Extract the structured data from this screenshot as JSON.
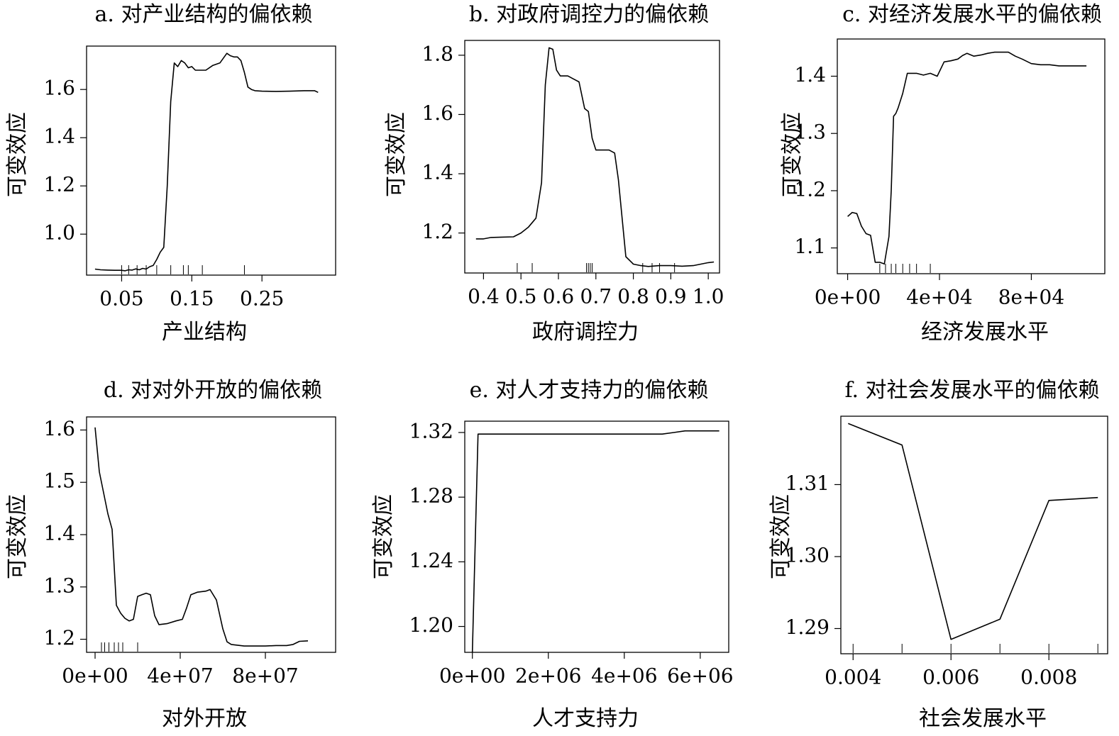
{
  "chart_data": [
    {
      "type": "line",
      "title": "a. 对产业结构的偏依赖",
      "xlabel": "产业结构",
      "ylabel": "可变效应",
      "xlim": [
        0.0,
        0.355
      ],
      "ylim": [
        0.83,
        1.78
      ],
      "xticks": [
        0.05,
        0.15,
        0.25
      ],
      "xtick_labels": [
        "0.05",
        "0.15",
        "0.25"
      ],
      "yticks": [
        1.0,
        1.2,
        1.4,
        1.6
      ],
      "ytick_labels": [
        "1.0",
        "1.2",
        "1.4",
        "1.6"
      ],
      "rug": [
        0.05,
        0.06,
        0.072,
        0.085,
        0.1,
        0.12,
        0.138,
        0.145,
        0.165,
        0.225
      ],
      "x": [
        0.012,
        0.02,
        0.03,
        0.04,
        0.05,
        0.055,
        0.06,
        0.065,
        0.07,
        0.075,
        0.08,
        0.085,
        0.09,
        0.095,
        0.1,
        0.105,
        0.11,
        0.115,
        0.12,
        0.125,
        0.13,
        0.135,
        0.14,
        0.145,
        0.15,
        0.155,
        0.16,
        0.17,
        0.18,
        0.19,
        0.2,
        0.205,
        0.21,
        0.215,
        0.22,
        0.225,
        0.23,
        0.235,
        0.24,
        0.25,
        0.27,
        0.29,
        0.31,
        0.325,
        0.33
      ],
      "y": [
        0.855,
        0.852,
        0.851,
        0.85,
        0.85,
        0.848,
        0.852,
        0.851,
        0.856,
        0.852,
        0.858,
        0.855,
        0.865,
        0.87,
        0.895,
        0.925,
        0.945,
        1.2,
        1.55,
        1.71,
        1.695,
        1.72,
        1.71,
        1.69,
        1.695,
        1.68,
        1.68,
        1.68,
        1.7,
        1.71,
        1.75,
        1.74,
        1.735,
        1.735,
        1.72,
        1.67,
        1.61,
        1.6,
        1.595,
        1.593,
        1.592,
        1.593,
        1.595,
        1.595,
        1.588
      ]
    },
    {
      "type": "line",
      "title": "b. 对政府调控力的偏依赖",
      "xlabel": "政府调控力",
      "ylabel": "可变效应",
      "xlim": [
        0.35,
        1.03
      ],
      "ylim": [
        1.065,
        1.85
      ],
      "xticks": [
        0.4,
        0.5,
        0.6,
        0.7,
        0.8,
        0.9,
        1.0
      ],
      "xtick_labels": [
        "0.4",
        "0.5",
        "0.6",
        "0.7",
        "0.8",
        "0.9",
        "1.0"
      ],
      "yticks": [
        1.2,
        1.4,
        1.6,
        1.8
      ],
      "ytick_labels": [
        "1.2",
        "1.4",
        "1.6",
        "1.8"
      ],
      "rug": [
        0.49,
        0.53,
        0.675,
        0.68,
        0.685,
        0.69,
        0.825,
        0.85,
        0.87,
        0.91
      ],
      "x": [
        0.38,
        0.4,
        0.42,
        0.45,
        0.48,
        0.5,
        0.52,
        0.54,
        0.555,
        0.565,
        0.575,
        0.585,
        0.595,
        0.605,
        0.615,
        0.625,
        0.64,
        0.655,
        0.67,
        0.68,
        0.69,
        0.7,
        0.72,
        0.735,
        0.75,
        0.76,
        0.78,
        0.8,
        0.82,
        0.84,
        0.87,
        0.9,
        0.93,
        0.96,
        0.98,
        1.0,
        1.015
      ],
      "y": [
        1.18,
        1.18,
        1.185,
        1.186,
        1.187,
        1.2,
        1.22,
        1.25,
        1.37,
        1.7,
        1.825,
        1.82,
        1.75,
        1.73,
        1.73,
        1.73,
        1.72,
        1.71,
        1.62,
        1.61,
        1.52,
        1.48,
        1.48,
        1.48,
        1.47,
        1.38,
        1.12,
        1.095,
        1.09,
        1.087,
        1.09,
        1.09,
        1.088,
        1.09,
        1.095,
        1.1,
        1.102
      ]
    },
    {
      "type": "line",
      "title": "c. 对经济发展水平的偏依赖",
      "xlabel": "经济发展水平",
      "ylabel": "可变效应",
      "xlim": [
        -4500,
        112000
      ],
      "ylim": [
        1.055,
        1.465
      ],
      "xticks": [
        0,
        40000,
        80000
      ],
      "xtick_labels": [
        "0e+00",
        "4e+04",
        "8e+04"
      ],
      "yticks": [
        1.1,
        1.2,
        1.3,
        1.4
      ],
      "ytick_labels": [
        "1.1",
        "1.2",
        "1.3",
        "1.4"
      ],
      "rug": [
        14000,
        16500,
        19000,
        21000,
        24000,
        27000,
        30000,
        36000
      ],
      "x": [
        0,
        2000,
        4000,
        6000,
        8000,
        10000,
        12000,
        14000,
        16000,
        18000,
        19000,
        20000,
        21000,
        22000,
        24000,
        26000,
        28000,
        30000,
        33000,
        36000,
        39000,
        42000,
        45000,
        48000,
        50000,
        52000,
        55000,
        58000,
        61000,
        64000,
        67000,
        70000,
        73000,
        76000,
        80000,
        84000,
        88000,
        92000,
        96000,
        100000,
        104000
      ],
      "y": [
        1.155,
        1.162,
        1.16,
        1.138,
        1.125,
        1.122,
        1.075,
        1.075,
        1.072,
        1.12,
        1.2,
        1.33,
        1.335,
        1.345,
        1.37,
        1.405,
        1.405,
        1.405,
        1.402,
        1.405,
        1.4,
        1.425,
        1.427,
        1.43,
        1.436,
        1.44,
        1.435,
        1.437,
        1.44,
        1.442,
        1.442,
        1.442,
        1.435,
        1.43,
        1.422,
        1.42,
        1.42,
        1.418,
        1.418,
        1.418,
        1.418
      ]
    },
    {
      "type": "line",
      "title": "d. 对对外开放的偏依赖",
      "xlabel": "对外开放",
      "ylabel": "可变效应",
      "xlim": [
        -4000000,
        113000000
      ],
      "ylim": [
        1.175,
        1.625
      ],
      "xticks": [
        0,
        40000000,
        80000000
      ],
      "xtick_labels": [
        "0e+00",
        "4e+07",
        "8e+07"
      ],
      "yticks": [
        1.2,
        1.3,
        1.4,
        1.5,
        1.6
      ],
      "ytick_labels": [
        "1.2",
        "1.3",
        "1.4",
        "1.5",
        "1.6"
      ],
      "rug": [
        3000000,
        4500000,
        6500000,
        9000000,
        11000000,
        13000000,
        20000000
      ],
      "x": [
        0,
        2000000,
        4000000,
        6000000,
        8000000,
        10000000,
        12000000,
        14000000,
        16000000,
        18000000,
        20000000,
        22000000,
        24000000,
        26000000,
        28000000,
        30000000,
        34000000,
        38000000,
        41000000,
        43000000,
        45000000,
        48000000,
        52000000,
        54000000,
        57000000,
        60000000,
        62000000,
        64000000,
        70000000,
        75000000,
        80000000,
        85000000,
        90000000,
        93000000,
        96000000,
        100000000
      ],
      "y": [
        1.605,
        1.52,
        1.48,
        1.44,
        1.41,
        1.265,
        1.25,
        1.24,
        1.235,
        1.238,
        1.282,
        1.285,
        1.288,
        1.285,
        1.245,
        1.228,
        1.23,
        1.235,
        1.238,
        1.26,
        1.285,
        1.29,
        1.292,
        1.295,
        1.275,
        1.22,
        1.195,
        1.19,
        1.187,
        1.187,
        1.187,
        1.188,
        1.188,
        1.19,
        1.196,
        1.197
      ]
    },
    {
      "type": "line",
      "title": "e. 对人才支持力的偏依赖",
      "xlabel": "人才支持力",
      "ylabel": "可变效应",
      "xlim": [
        -200000,
        6750000
      ],
      "ylim": [
        1.184,
        1.327
      ],
      "xticks": [
        0,
        2000000,
        4000000,
        6000000
      ],
      "xtick_labels": [
        "0e+00",
        "2e+06",
        "4e+06",
        "6e+06"
      ],
      "yticks": [
        1.2,
        1.24,
        1.28,
        1.32
      ],
      "ytick_labels": [
        "1.20",
        "1.24",
        "1.28",
        "1.32"
      ],
      "rug": [],
      "x": [
        0,
        150000,
        1000000,
        2000000,
        3000000,
        4000000,
        5000000,
        5300000,
        5600000,
        6000000,
        6500000
      ],
      "y": [
        1.184,
        1.319,
        1.319,
        1.319,
        1.319,
        1.319,
        1.319,
        1.32,
        1.321,
        1.321,
        1.321
      ]
    },
    {
      "type": "line",
      "title": "f. 对社会发展水平的偏依赖",
      "xlabel": "社会发展水平",
      "ylabel": "可变效应",
      "xlim": [
        0.00375,
        0.0092
      ],
      "ylim": [
        1.2865,
        1.3195
      ],
      "xticks": [
        0.004,
        0.006,
        0.008
      ],
      "xtick_labels": [
        "0.004",
        "0.006",
        "0.008"
      ],
      "yticks": [
        1.29,
        1.3,
        1.31
      ],
      "ytick_labels": [
        "1.29",
        "1.30",
        "1.31"
      ],
      "rug": [
        0.004,
        0.005,
        0.006,
        0.007,
        0.008,
        0.009
      ],
      "x": [
        0.0039,
        0.005,
        0.006,
        0.007,
        0.008,
        0.009
      ],
      "y": [
        1.3185,
        1.3155,
        1.2885,
        1.2913,
        1.3078,
        1.3082
      ]
    }
  ]
}
